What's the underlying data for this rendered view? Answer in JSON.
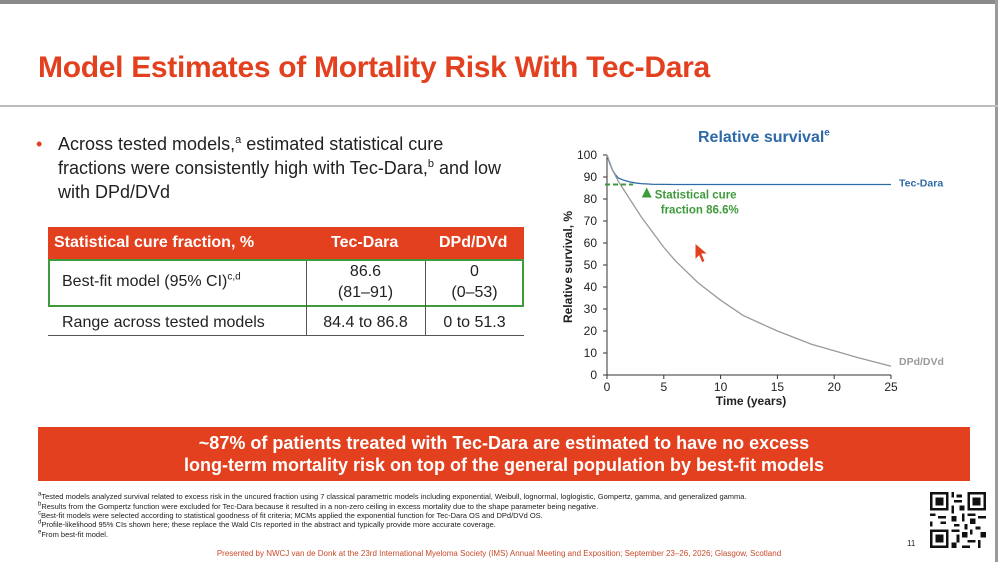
{
  "title": "Model Estimates of Mortality Risk With Tec-Dara",
  "bullet": {
    "marker": "•",
    "text_1": "Across tested models,",
    "sup_1": "a",
    "text_2": " estimated statistical cure fractions were consistently high with Tec-Dara,",
    "sup_2": "b",
    "text_3": " and low with DPd/DVd"
  },
  "table": {
    "headers": [
      "Statistical cure fraction, %",
      "Tec-Dara",
      "DPd/DVd"
    ],
    "row1": {
      "label": "Best-fit model (95% CI)",
      "label_sup": "c,d",
      "tec_value": "86.6",
      "tec_ci": "(81–91)",
      "dpd_value": "0",
      "dpd_ci": "(0–53)"
    },
    "row2": {
      "label": "Range across tested models",
      "tec": "84.4 to 86.8",
      "dpd": "0 to 51.3"
    }
  },
  "chart_title": "Relative survival",
  "chart_title_sup": "e",
  "chart_data": {
    "type": "line",
    "xlabel": "Time (years)",
    "ylabel": "Relative survival, %",
    "xlim": [
      0,
      25
    ],
    "ylim": [
      0,
      100
    ],
    "xticks": [
      0,
      5,
      10,
      15,
      20,
      25
    ],
    "yticks": [
      0,
      10,
      20,
      30,
      40,
      50,
      60,
      70,
      80,
      90,
      100
    ],
    "series": [
      {
        "name": "Tec-Dara",
        "color": "#2e6aa8",
        "x": [
          0,
          0.25,
          0.5,
          0.75,
          1,
          1.5,
          2,
          2.5,
          3,
          4,
          6,
          10,
          15,
          20,
          25
        ],
        "y": [
          100,
          96,
          93,
          91,
          89.5,
          88.5,
          87.8,
          87.3,
          87,
          86.7,
          86.6,
          86.6,
          86.6,
          86.6,
          86.6
        ]
      },
      {
        "name": "DPd/DVd",
        "color": "#9a9a9a",
        "x": [
          0,
          0.5,
          1,
          2,
          3,
          4,
          5,
          6,
          8,
          10,
          12,
          15,
          18,
          20,
          22,
          25
        ],
        "y": [
          100,
          93,
          88,
          80,
          72,
          65,
          58,
          52,
          42,
          34,
          27,
          20,
          14,
          11,
          8,
          4
        ]
      }
    ],
    "annotation": {
      "line1": "Statistical cure",
      "line2": "fraction 86.6%",
      "value": 86.6,
      "color": "#3e9a3a"
    }
  },
  "banner": {
    "line1": "~87% of patients treated with Tec-Dara are estimated to have no excess",
    "line2": "long-term mortality risk on top of the general population by best-fit models"
  },
  "footnotes": [
    {
      "sup": "a",
      "text": "Tested models analyzed survival related to excess risk in the uncured fraction using 7 classical parametric models including exponential, Weibull, lognormal, loglogistic, Gompertz, gamma, and generalized gamma."
    },
    {
      "sup": "b",
      "text": "Results from the Gompertz function were excluded for Tec-Dara because it resulted in a non-zero ceiling in excess mortality due to the shape parameter being negative."
    },
    {
      "sup": "c",
      "text": "Best-fit models were selected according to statistical goodness of fit criteria; MCMs applied the exponential function for Tec-Dara OS and DPd/DVd OS."
    },
    {
      "sup": "d",
      "text": "Profile-likelihood 95% CIs shown here; these replace the Wald CIs reported in the abstract and typically provide more accurate coverage."
    },
    {
      "sup": "e",
      "text": "From best-fit model."
    }
  ],
  "presented_by": "Presented by NWCJ van de Donk at the 23rd International Myeloma Society (IMS) Annual Meeting and Exposition; September 23–26, 2026; Glasgow, Scotland",
  "page_number": "11",
  "colors": {
    "accent": "#e2401f",
    "tec": "#2e6aa8",
    "dpd": "#9a9a9a",
    "cure": "#3e9a3a"
  }
}
